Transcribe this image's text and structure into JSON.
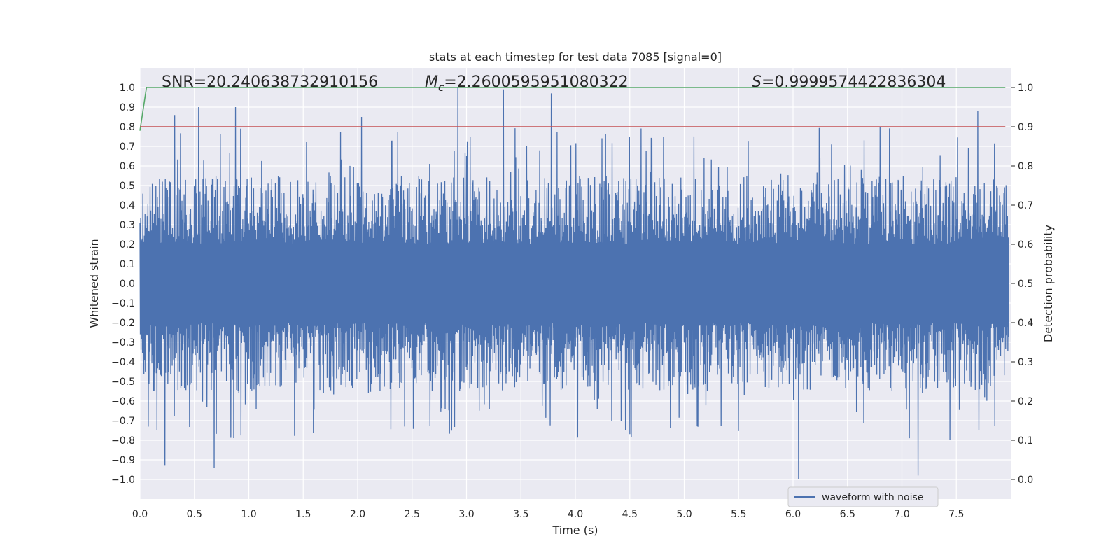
{
  "chart_data": {
    "type": "line",
    "title": "stats at each timestep for test data 7085 [signal=0]",
    "xlabel": "Time (s)",
    "ylabel_left": "Whitened strain",
    "ylabel_right": "Detection probability",
    "xlim": [
      0.0,
      8.0
    ],
    "ylim_left": [
      -1.1,
      1.1
    ],
    "ylim_right": [
      -0.05,
      1.05
    ],
    "xticks": [
      "0.0",
      "0.5",
      "1.0",
      "1.5",
      "2.0",
      "2.5",
      "3.0",
      "3.5",
      "4.0",
      "4.5",
      "5.0",
      "5.5",
      "6.0",
      "6.5",
      "7.0",
      "7.5"
    ],
    "yticks_left": [
      "1.0",
      "0.9",
      "0.8",
      "0.7",
      "0.6",
      "0.5",
      "0.4",
      "0.3",
      "0.2",
      "0.1",
      "0.0",
      "−0.1",
      "−0.2",
      "−0.3",
      "−0.4",
      "−0.5",
      "−0.6",
      "−0.7",
      "−0.8",
      "−0.9",
      "−1.0"
    ],
    "yticks_right": [
      "1.0",
      "0.9",
      "0.8",
      "0.7",
      "0.6",
      "0.5",
      "0.4",
      "0.3",
      "0.2",
      "0.1",
      "0.0"
    ],
    "grid": true,
    "legend": {
      "location": "lower-right",
      "entries": [
        "waveform with noise"
      ]
    },
    "annotations": {
      "snr": "SNR=20.240638732910156",
      "mc_symbol": "M",
      "mc_sub": "c",
      "mc_value": "=2.2600595951080322",
      "s_symbol": "S",
      "s_value": "=0.9999574422836304"
    },
    "series": [
      {
        "name": "waveform with noise",
        "axis": "left",
        "color": "#4c72b0",
        "noise": {
          "core_amplitude": 0.2,
          "typical_peak_amplitude": 0.55,
          "max_amplitude": 1.0,
          "spike_count": 130
        },
        "notable_peaks": [
          {
            "x": 0.32,
            "y": 0.86
          },
          {
            "x": 0.54,
            "y": 0.9
          },
          {
            "x": 0.88,
            "y": 0.9
          },
          {
            "x": 2.04,
            "y": 0.85
          },
          {
            "x": 2.92,
            "y": 1.0
          },
          {
            "x": 3.34,
            "y": 0.99
          },
          {
            "x": 3.78,
            "y": 0.97
          },
          {
            "x": 7.7,
            "y": 0.88
          },
          {
            "x": 6.05,
            "y": -1.0
          },
          {
            "x": 7.15,
            "y": -0.98
          },
          {
            "x": 0.23,
            "y": -0.93
          },
          {
            "x": 0.68,
            "y": -0.94
          }
        ]
      },
      {
        "name": "detection probability",
        "axis": "right",
        "color": "#55a868",
        "x": [
          0.0,
          0.06,
          7.95
        ],
        "y": [
          0.89,
          1.0,
          1.0
        ]
      },
      {
        "name": "threshold",
        "axis": "right",
        "color": "#c44e52",
        "x": [
          0.0,
          7.95
        ],
        "y": [
          0.9,
          0.9
        ]
      }
    ]
  }
}
